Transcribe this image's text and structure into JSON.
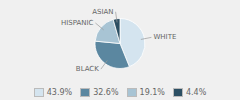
{
  "chart_data": {
    "type": "pie",
    "categories": [
      "WHITE",
      "BLACK",
      "HISPANIC",
      "ASIAN"
    ],
    "values": [
      43.9,
      32.6,
      19.1,
      4.4
    ],
    "value_labels": [
      "43.9%",
      "32.6%",
      "19.1%",
      "4.4%"
    ],
    "colors": [
      "#d4e4ef",
      "#5b87a0",
      "#a8c4d4",
      "#2c4f63"
    ],
    "legend": "bottom"
  }
}
